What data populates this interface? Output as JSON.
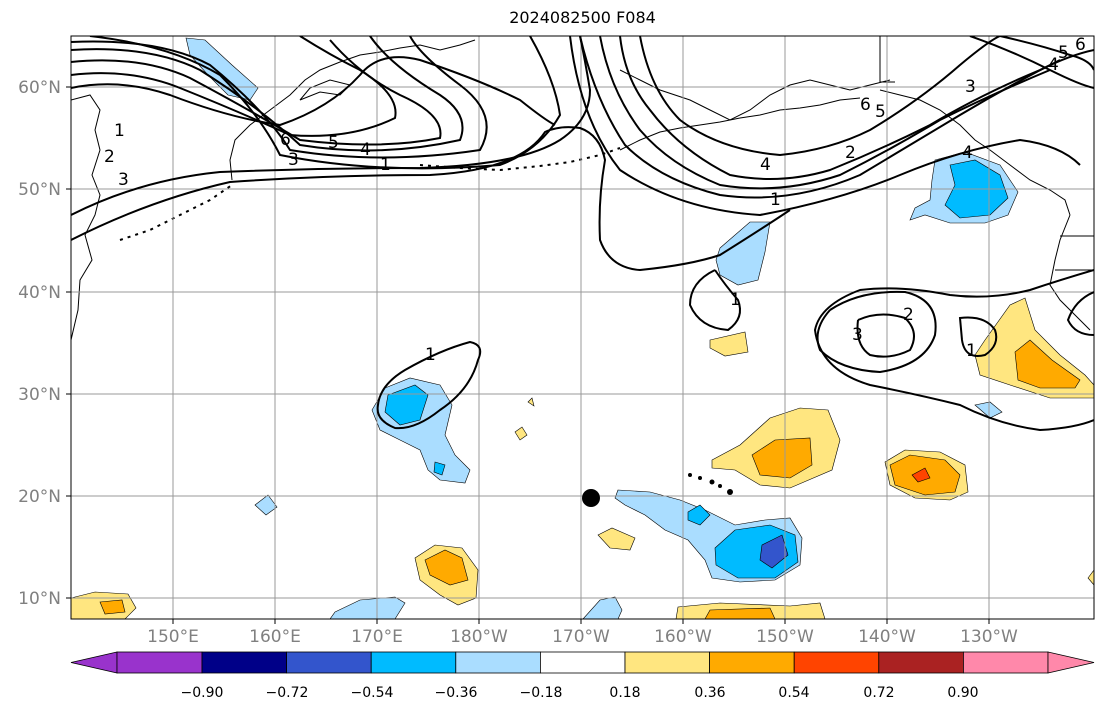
{
  "title": "2024082500 F084",
  "lat_labels": [
    "60°N",
    "50°N",
    "40°N",
    "30°N",
    "20°N",
    "10°N"
  ],
  "lon_labels": [
    "150°E",
    "160°E",
    "170°E",
    "180°W",
    "170°W",
    "160°W",
    "150°W",
    "140°W",
    "130°W"
  ],
  "colorbar": {
    "ticks": [
      "−0.90",
      "−0.72",
      "−0.54",
      "−0.36",
      "−0.18",
      "0.18",
      "0.36",
      "0.54",
      "0.72",
      "0.90"
    ],
    "colors": [
      "#9933cc",
      "#000088",
      "#3355cc",
      "#00bbff",
      "#aaddff",
      "#ffffff",
      "#ffe680",
      "#ffaa00",
      "#ff4400",
      "#aa2222",
      "#ff88aa"
    ]
  },
  "contour_labels": [
    "1",
    "2",
    "3",
    "4",
    "5",
    "6",
    "1",
    "2",
    "3",
    "4",
    "5",
    "6",
    "1",
    "1",
    "1",
    "2",
    "3",
    "1",
    "4",
    "3",
    "4",
    "5",
    "6"
  ],
  "colors": {
    "land_line": "#000000",
    "grid": "#999999",
    "contour": "#000000"
  }
}
